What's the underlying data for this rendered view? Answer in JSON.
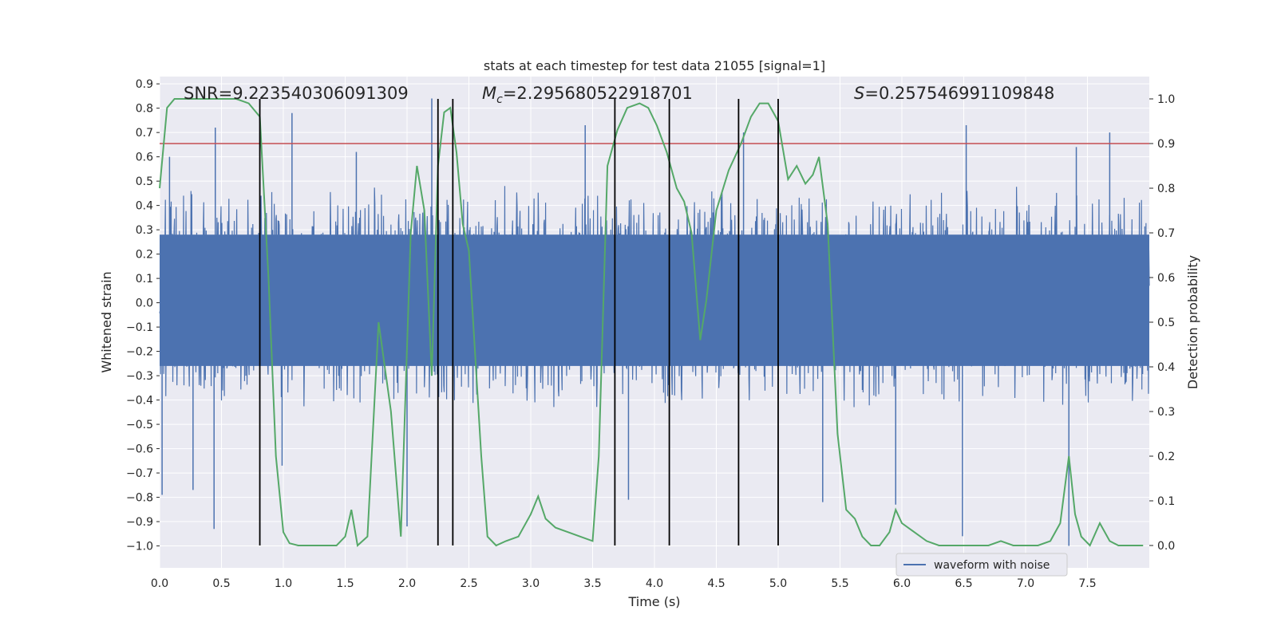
{
  "chart_data": {
    "type": "line",
    "title": "stats at each timestep for test data 21055 [signal=1]",
    "xlabel": "Time (s)",
    "ylabel": "Whitened strain",
    "y2label": "Detection probability",
    "xlim": [
      0.0,
      8.0
    ],
    "ylim": [
      -1.09,
      0.93
    ],
    "y2lim": [
      -0.05,
      1.05
    ],
    "xticks": [
      "0.0",
      "0.5",
      "1.0",
      "1.5",
      "2.0",
      "2.5",
      "3.0",
      "3.5",
      "4.0",
      "4.5",
      "5.0",
      "5.5",
      "6.0",
      "6.5",
      "7.0",
      "7.5"
    ],
    "yticks": [
      "0.9",
      "0.8",
      "0.7",
      "0.6",
      "0.5",
      "0.4",
      "0.3",
      "0.2",
      "0.1",
      "0.0",
      "-0.1",
      "-0.2",
      "-0.3",
      "-0.4",
      "-0.5",
      "-0.6",
      "-0.7",
      "-0.8",
      "-0.9",
      "-1.0"
    ],
    "y2ticks": [
      "1.0",
      "0.9",
      "0.8",
      "0.7",
      "0.6",
      "0.5",
      "0.4",
      "0.3",
      "0.2",
      "0.1",
      "0.0"
    ],
    "grid": true,
    "annotations": {
      "snr": "SNR=9.223540306091309",
      "mc_prefix": "M",
      "mc_sub": "c",
      "mc_value": "=2.295680522918701",
      "s_prefix": "S",
      "s_value": "=0.257546991109848"
    },
    "legend": {
      "position": "lower-right",
      "label": "waveform with noise"
    },
    "threshold": {
      "y2": 0.9
    },
    "vlines": [
      0.81,
      2.25,
      2.37,
      3.68,
      4.12,
      4.68,
      5.0
    ],
    "waveform_envelope": {
      "typical_low": -0.45,
      "typical_high": 0.5,
      "spikes": [
        {
          "x": 0.02,
          "y": -0.79
        },
        {
          "x": 0.08,
          "y": 0.6
        },
        {
          "x": 0.27,
          "y": -0.77
        },
        {
          "x": 0.44,
          "y": -0.93
        },
        {
          "x": 0.45,
          "y": 0.72
        },
        {
          "x": 0.99,
          "y": -0.67
        },
        {
          "x": 1.07,
          "y": 0.78
        },
        {
          "x": 1.59,
          "y": 0.62
        },
        {
          "x": 2.0,
          "y": -0.92
        },
        {
          "x": 2.2,
          "y": 0.84
        },
        {
          "x": 3.44,
          "y": 0.73
        },
        {
          "x": 3.79,
          "y": -0.81
        },
        {
          "x": 4.72,
          "y": 0.7
        },
        {
          "x": 5.36,
          "y": -0.82
        },
        {
          "x": 5.95,
          "y": -0.83
        },
        {
          "x": 6.49,
          "y": -0.96
        },
        {
          "x": 6.52,
          "y": 0.73
        },
        {
          "x": 7.35,
          "y": -1.0
        },
        {
          "x": 7.68,
          "y": 0.7
        },
        {
          "x": 7.41,
          "y": 0.64
        }
      ]
    },
    "series": [
      {
        "name": "waveform with noise",
        "color": "#4c72b0",
        "note": "dense noisy strain signal"
      },
      {
        "color": "#55a868",
        "axis": "right",
        "x": [
          0.0,
          0.06,
          0.12,
          0.25,
          0.5,
          0.62,
          0.72,
          0.81,
          0.88,
          0.94,
          1.0,
          1.05,
          1.12,
          1.2,
          1.3,
          1.43,
          1.5,
          1.55,
          1.6,
          1.68,
          1.77,
          1.87,
          1.95,
          2.03,
          2.08,
          2.14,
          2.2,
          2.25,
          2.3,
          2.35,
          2.4,
          2.45,
          2.5,
          2.6,
          2.65,
          2.72,
          2.8,
          2.9,
          3.0,
          3.06,
          3.12,
          3.2,
          3.3,
          3.4,
          3.5,
          3.55,
          3.62,
          3.7,
          3.78,
          3.88,
          3.95,
          4.02,
          4.1,
          4.18,
          4.24,
          4.3,
          4.37,
          4.42,
          4.5,
          4.6,
          4.7,
          4.78,
          4.85,
          4.92,
          5.0,
          5.08,
          5.15,
          5.22,
          5.28,
          5.33,
          5.4,
          5.48,
          5.55,
          5.62,
          5.68,
          5.75,
          5.82,
          5.9,
          5.95,
          6.0,
          6.1,
          6.2,
          6.3,
          6.5,
          6.6,
          6.7,
          6.8,
          6.9,
          7.0,
          7.1,
          7.2,
          7.28,
          7.35,
          7.4,
          7.45,
          7.52,
          7.6,
          7.68,
          7.75,
          7.85,
          7.95
        ],
        "values": [
          0.8,
          0.98,
          1.0,
          1.0,
          1.0,
          1.0,
          0.99,
          0.96,
          0.6,
          0.2,
          0.03,
          0.005,
          0.0,
          0.0,
          0.0,
          0.0,
          0.02,
          0.08,
          0.0,
          0.02,
          0.5,
          0.3,
          0.02,
          0.7,
          0.85,
          0.75,
          0.38,
          0.85,
          0.97,
          0.98,
          0.88,
          0.72,
          0.66,
          0.2,
          0.02,
          0.0,
          0.01,
          0.02,
          0.07,
          0.11,
          0.06,
          0.04,
          0.03,
          0.02,
          0.01,
          0.2,
          0.85,
          0.93,
          0.98,
          0.99,
          0.98,
          0.94,
          0.88,
          0.8,
          0.77,
          0.7,
          0.46,
          0.55,
          0.75,
          0.84,
          0.9,
          0.96,
          0.99,
          0.99,
          0.95,
          0.82,
          0.85,
          0.81,
          0.83,
          0.87,
          0.72,
          0.25,
          0.08,
          0.06,
          0.02,
          0.0,
          0.0,
          0.03,
          0.08,
          0.05,
          0.03,
          0.01,
          0.0,
          0.0,
          0.0,
          0.0,
          0.01,
          0.0,
          0.0,
          0.0,
          0.01,
          0.05,
          0.2,
          0.07,
          0.02,
          0.0,
          0.05,
          0.01,
          0.0,
          0.0,
          0.0
        ]
      }
    ],
    "colors": {
      "background": "#eaeaf2",
      "grid": "#ffffff",
      "strain": "#4c72b0",
      "probability": "#55a868",
      "threshold": "#c44e52",
      "vline": "#000000"
    }
  }
}
